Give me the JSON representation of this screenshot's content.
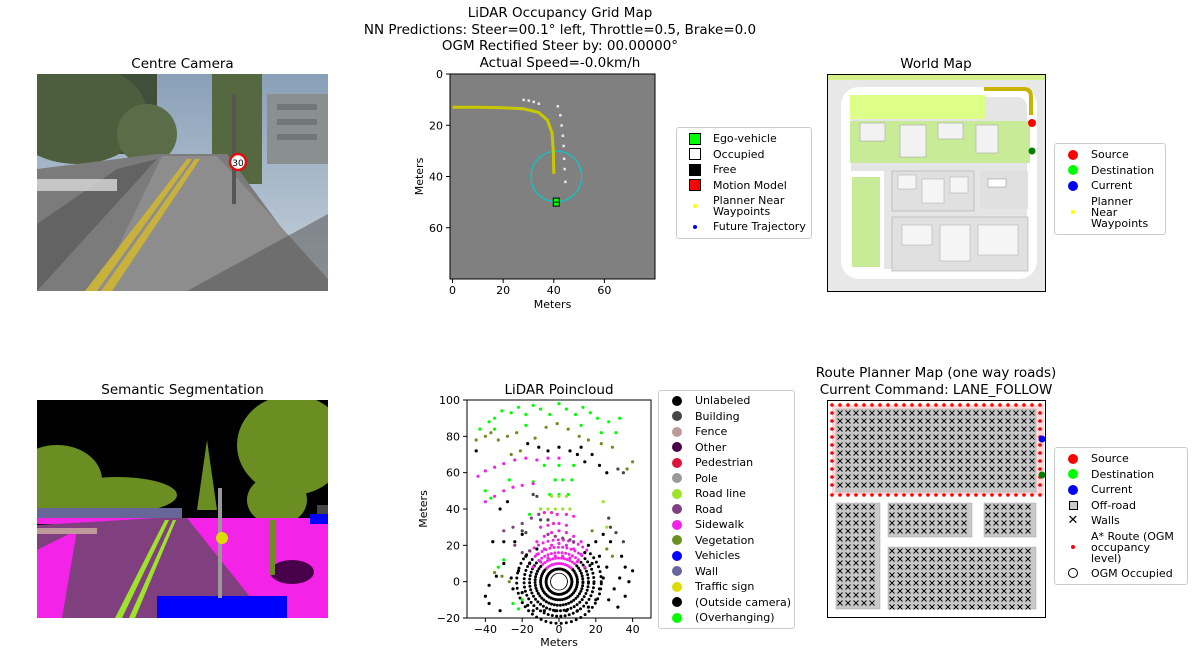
{
  "figure": {
    "title_lines": [
      "LiDAR Occupancy Grid Map",
      "NN Predictions: Steer=00.1° left, Throttle=0.5, Brake=0.0",
      "OGM Rectified Steer by: 00.00000°",
      "Actual Speed=-0.0km/h"
    ]
  },
  "panels": {
    "centre_camera": {
      "title": "Centre Camera",
      "speed_sign": "30"
    },
    "world_map": {
      "title": "World Map"
    },
    "semantic_segmentation": {
      "title": "Semantic Segmentation"
    },
    "route_planner": {
      "title_line1": "Route Planner Map (one way roads)",
      "title_line2": "Current Command: LANE_FOLLOW"
    }
  },
  "legends": {
    "ogm": [
      {
        "label": "Ego-vehicle",
        "marker": "square",
        "color": "#00ff00"
      },
      {
        "label": "Occupied",
        "marker": "square",
        "color": "#ffffff"
      },
      {
        "label": "Free",
        "marker": "square",
        "color": "#000000"
      },
      {
        "label": "Motion Model",
        "marker": "square",
        "color": "#ff0000"
      },
      {
        "label": "Planner Near Waypoints",
        "marker": "tiny-dot",
        "color": "#ffff00"
      },
      {
        "label": "Future Trajectory",
        "marker": "tiny-dot",
        "color": "#0000ff"
      }
    ],
    "world_map": [
      {
        "label": "Source",
        "marker": "dot",
        "color": "#ff0000"
      },
      {
        "label": "Destination",
        "marker": "dot",
        "color": "#00ff00"
      },
      {
        "label": "Current",
        "marker": "dot",
        "color": "#0000ff"
      },
      {
        "label": "Planner Near Waypoints",
        "marker": "tiny-dot",
        "color": "#ffff00"
      }
    ],
    "semantic_classes": [
      {
        "label": "Unlabeled",
        "color": "#000000"
      },
      {
        "label": "Building",
        "color": "#464646"
      },
      {
        "label": "Fence",
        "color": "#be9999"
      },
      {
        "label": "Other",
        "color": "#48004a"
      },
      {
        "label": "Pedestrian",
        "color": "#dc143c"
      },
      {
        "label": "Pole",
        "color": "#999999"
      },
      {
        "label": "Road line",
        "color": "#9de22b"
      },
      {
        "label": "Road",
        "color": "#804080"
      },
      {
        "label": "Sidewalk",
        "color": "#f423e8"
      },
      {
        "label": "Vegetation",
        "color": "#6b8e23"
      },
      {
        "label": "Vehicles",
        "color": "#0000ff"
      },
      {
        "label": "Wall",
        "color": "#666699"
      },
      {
        "label": "Traffic sign",
        "color": "#dcdc00"
      },
      {
        "label": "(Outside camera)",
        "color": "#000000"
      },
      {
        "label": "(Overhanging)",
        "color": "#00ff00"
      }
    ],
    "route_planner": [
      {
        "label": "Source",
        "marker": "dot",
        "color": "#ff0000"
      },
      {
        "label": "Destination",
        "marker": "dot",
        "color": "#00ff00"
      },
      {
        "label": "Current",
        "marker": "dot",
        "color": "#0000ff"
      },
      {
        "label": "Off-road",
        "marker": "box",
        "color": "#c8c8c8"
      },
      {
        "label": "Walls",
        "marker": "x",
        "color": "#000000"
      },
      {
        "label": "A* Route (OGM occupancy level)",
        "marker": "tiny-dot",
        "color": "#ff0000"
      },
      {
        "label": "OGM Occupied",
        "marker": "ring",
        "color": "#ffffff"
      }
    ]
  },
  "chart_data": [
    {
      "type": "heatmap",
      "id": "ogm",
      "title": "",
      "xlabel": "Meters",
      "ylabel": "Meters",
      "xlim": [
        -1,
        80
      ],
      "ylim": [
        80,
        0
      ],
      "xticks": [
        0,
        20,
        40,
        60
      ],
      "yticks": [
        0,
        20,
        40,
        60
      ],
      "grid": false,
      "ego_vehicle": {
        "x": 41,
        "y": 50
      },
      "planner_circle": {
        "x": 41,
        "y": 40,
        "radius": 10
      },
      "planned_path": [
        [
          0,
          13
        ],
        [
          10,
          13
        ],
        [
          20,
          13.2
        ],
        [
          28,
          13.6
        ],
        [
          34,
          15
        ],
        [
          37.5,
          18
        ],
        [
          39.3,
          23
        ],
        [
          39.8,
          30
        ],
        [
          40,
          39
        ]
      ],
      "occupied_edges": [
        [
          28,
          10
        ],
        [
          30,
          10.3
        ],
        [
          32,
          10.8
        ],
        [
          34,
          11.5
        ],
        [
          41.5,
          12.5
        ],
        [
          42.5,
          16
        ],
        [
          43,
          20
        ],
        [
          43.5,
          24
        ],
        [
          43.8,
          28
        ],
        [
          44,
          33
        ],
        [
          44.2,
          37
        ],
        [
          44.5,
          42
        ]
      ]
    },
    {
      "type": "scatter",
      "id": "lidar",
      "title": "LiDAR Poincloud",
      "xlabel": "Meters",
      "ylabel": "Meters",
      "xlim": [
        -50,
        50
      ],
      "ylim": [
        -20,
        100
      ],
      "xticks": [
        -40,
        -20,
        0,
        20,
        40
      ],
      "yticks": [
        -20,
        0,
        20,
        40,
        60,
        80,
        100
      ],
      "grid": false,
      "series": [
        {
          "class": "Vegetation",
          "points": [
            [
              -45,
              78
            ],
            [
              -40,
              80
            ],
            [
              -37,
              82
            ],
            [
              -33,
              78
            ],
            [
              -28,
              80
            ],
            [
              -23,
              82
            ],
            [
              -13,
              79
            ],
            [
              -7,
              85
            ],
            [
              -1,
              87
            ],
            [
              5,
              84
            ],
            [
              11,
              80
            ],
            [
              16,
              78
            ],
            [
              23,
              76
            ],
            [
              29,
              74
            ],
            [
              37,
              62
            ],
            [
              40,
              66
            ],
            [
              -26,
              70
            ],
            [
              -21,
              72
            ],
            [
              18,
              28
            ],
            [
              26,
              18
            ],
            [
              29,
              14
            ],
            [
              -35,
              5
            ],
            [
              -31,
              3
            ],
            [
              -27,
              0
            ]
          ]
        },
        {
          "class": "(Overhanging)",
          "points": [
            [
              -38,
              88
            ],
            [
              -35,
              90
            ],
            [
              -31,
              94
            ],
            [
              -26,
              93
            ],
            [
              -22,
              96
            ],
            [
              -18,
              92
            ],
            [
              -14,
              97
            ],
            [
              -10,
              95
            ],
            [
              -5,
              92
            ],
            [
              0,
              98
            ],
            [
              4,
              95
            ],
            [
              9,
              92
            ],
            [
              13,
              96
            ],
            [
              17,
              93
            ],
            [
              21,
              90
            ],
            [
              27,
              88
            ],
            [
              33,
              90
            ],
            [
              -43,
              84
            ],
            [
              -35,
              84
            ],
            [
              -18,
              86
            ],
            [
              12,
              86
            ],
            [
              23,
              82
            ],
            [
              31,
              82
            ],
            [
              -2,
              56
            ],
            [
              2,
              56
            ],
            [
              7,
              56
            ],
            [
              -5,
              48
            ],
            [
              0,
              48
            ],
            [
              5,
              48
            ],
            [
              -25,
              -12
            ],
            [
              -22,
              -15
            ],
            [
              -20,
              -10
            ],
            [
              -30,
              12
            ],
            [
              -33,
              8
            ],
            [
              -40,
              50
            ],
            [
              -37,
              46
            ],
            [
              -27,
              56
            ],
            [
              8,
              64
            ],
            [
              0,
              64
            ],
            [
              -8,
              64
            ],
            [
              -14,
              55
            ],
            [
              -10,
              40
            ],
            [
              -16,
              37
            ],
            [
              -20,
              32
            ]
          ]
        },
        {
          "class": "Sidewalk",
          "points": [
            [
              -44,
              58
            ],
            [
              -40,
              61
            ],
            [
              -35,
              63
            ],
            [
              -30,
              65
            ],
            [
              -24,
              67
            ],
            [
              -18,
              68
            ],
            [
              -12,
              67
            ],
            [
              -6,
              68
            ],
            [
              0,
              68
            ],
            [
              -40,
              44
            ],
            [
              -35,
              47
            ],
            [
              -30,
              50
            ],
            [
              -25,
              52
            ],
            [
              -20,
              53
            ],
            [
              -14,
              54
            ],
            [
              -8,
              38
            ],
            [
              -4,
              38
            ],
            [
              -1,
              37
            ],
            [
              4,
              37
            ],
            [
              8,
              36
            ],
            [
              -10,
              30
            ],
            [
              -6,
              31
            ],
            [
              -3,
              32
            ],
            [
              0,
              32
            ],
            [
              4,
              31
            ],
            [
              -12,
              22
            ],
            [
              -8,
              25
            ],
            [
              -4,
              27
            ],
            [
              0,
              28
            ],
            [
              4,
              27
            ],
            [
              8,
              25
            ],
            [
              12,
              22
            ],
            [
              -12,
              15
            ],
            [
              -8,
              18
            ],
            [
              -4,
              20
            ],
            [
              0,
              21
            ],
            [
              4,
              20
            ],
            [
              8,
              18
            ],
            [
              12,
              15
            ],
            [
              -14,
              8
            ],
            [
              -10,
              11
            ],
            [
              -6,
              13
            ],
            [
              -2,
              14
            ],
            [
              2,
              14
            ],
            [
              6,
              13
            ],
            [
              10,
              11
            ],
            [
              14,
              8
            ]
          ]
        },
        {
          "class": "Road",
          "points": [
            [
              -30,
              28
            ],
            [
              -25,
              30
            ],
            [
              -20,
              32
            ],
            [
              -15,
              35
            ],
            [
              -11,
              37
            ],
            [
              -6,
              26
            ],
            [
              -2,
              25
            ],
            [
              2,
              24
            ],
            [
              6,
              23
            ],
            [
              8,
              22
            ],
            [
              -20,
              16
            ],
            [
              -16,
              17
            ],
            [
              -24,
              20
            ]
          ]
        },
        {
          "class": "Building",
          "points": [
            [
              -20,
              28
            ],
            [
              -18,
              27
            ],
            [
              27,
              35
            ],
            [
              28,
              30
            ],
            [
              31,
              27
            ],
            [
              35,
              22
            ],
            [
              -14,
              48
            ],
            [
              -12,
              47
            ],
            [
              -10,
              34
            ],
            [
              -6,
              34
            ],
            [
              32,
              62
            ],
            [
              35,
              60
            ]
          ]
        },
        {
          "class": "Road line",
          "points": [
            [
              -10,
              40
            ],
            [
              -6,
              40
            ],
            [
              -2,
              40
            ],
            [
              2,
              40
            ],
            [
              6,
              40
            ],
            [
              -4,
              47
            ],
            [
              0,
              47
            ],
            [
              4,
              47
            ],
            [
              24,
              44
            ],
            [
              26,
              30
            ]
          ]
        },
        {
          "class": "Unlabeled",
          "points": [
            [
              -36,
              22
            ],
            [
              -30,
              22
            ],
            [
              -24,
              22
            ],
            [
              -20,
              26
            ],
            [
              -18,
              14
            ],
            [
              -30,
              10
            ],
            [
              -34,
              3
            ],
            [
              -38,
              -2
            ],
            [
              -40,
              -8
            ],
            [
              -38,
              -12
            ],
            [
              -32,
              -16
            ],
            [
              -26,
              2
            ],
            [
              -22,
              6
            ],
            [
              -16,
              10
            ],
            [
              -12,
              18
            ],
            [
              -25,
              -4
            ],
            [
              -20,
              -6
            ],
            [
              -17,
              -13
            ],
            [
              -14,
              -16
            ],
            [
              -8,
              -16
            ],
            [
              -2,
              -16
            ],
            [
              4,
              -16
            ],
            [
              10,
              -16
            ],
            [
              16,
              -14
            ],
            [
              20,
              -10
            ],
            [
              22,
              -4
            ],
            [
              24,
              2
            ],
            [
              26,
              8
            ],
            [
              22,
              14
            ],
            [
              18,
              10
            ],
            [
              14,
              16
            ],
            [
              16,
              20
            ],
            [
              20,
              22
            ],
            [
              24,
              26
            ],
            [
              28,
              22
            ],
            [
              34,
              14
            ],
            [
              36,
              8
            ],
            [
              33,
              2
            ],
            [
              30,
              -4
            ],
            [
              27,
              -10
            ],
            [
              32,
              -14
            ],
            [
              36,
              -8
            ],
            [
              38,
              0
            ],
            [
              40,
              6
            ],
            [
              10,
              70
            ],
            [
              14,
              66
            ],
            [
              18,
              70
            ],
            [
              22,
              64
            ],
            [
              26,
              60
            ],
            [
              -17,
              76
            ],
            [
              -11,
              74
            ],
            [
              -6,
              72
            ],
            [
              0,
              74
            ],
            [
              6,
              72
            ],
            [
              12,
              74
            ],
            [
              -45,
              72
            ],
            [
              -28,
              44
            ],
            [
              -32,
              40
            ]
          ]
        }
      ]
    }
  ]
}
